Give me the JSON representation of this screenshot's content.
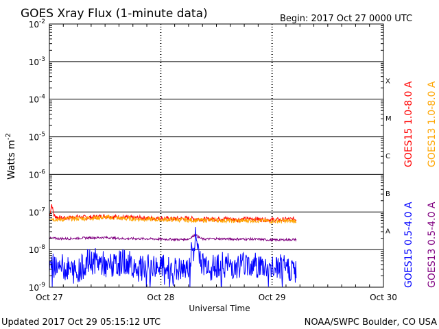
{
  "header": {
    "title": "GOES Xray Flux (1-minute data)",
    "begin": "Begin:  2017 Oct 27 0000 UTC"
  },
  "footer": {
    "updated": "Updated 2017 Oct 29 05:15:12 UTC",
    "credit": "NOAA/SWPC Boulder, CO USA"
  },
  "chart_data": {
    "type": "line",
    "title": "GOES Xray Flux (1-minute data)",
    "xlabel": "Universal Time",
    "ylabel": "Watts m",
    "ylabel_superscript": "-2",
    "y_scale": "log",
    "ylim": [
      1e-09,
      0.01
    ],
    "xlim": [
      "2017-10-27 00:00",
      "2017-10-30 00:00"
    ],
    "x_ticks": [
      "Oct 27",
      "Oct 28",
      "Oct 29",
      "Oct 30"
    ],
    "y_ticks": [
      {
        "base": "10",
        "exp": "-2",
        "value": 0.01
      },
      {
        "base": "10",
        "exp": "-3",
        "value": 0.001
      },
      {
        "base": "10",
        "exp": "-4",
        "value": 0.0001
      },
      {
        "base": "10",
        "exp": "-5",
        "value": 1e-05
      },
      {
        "base": "10",
        "exp": "-6",
        "value": 1e-06
      },
      {
        "base": "10",
        "exp": "-7",
        "value": 1e-07
      },
      {
        "base": "10",
        "exp": "-8",
        "value": 1e-08
      },
      {
        "base": "10",
        "exp": "-9",
        "value": 1e-09
      }
    ],
    "flare_classes": [
      {
        "label": "X",
        "low": 0.0001,
        "high": 0.001
      },
      {
        "label": "M",
        "low": 1e-05,
        "high": 0.0001
      },
      {
        "label": "C",
        "low": 1e-06,
        "high": 1e-05
      },
      {
        "label": "B",
        "low": 1e-07,
        "high": 1e-06
      },
      {
        "label": "A",
        "low": 1e-08,
        "high": 1e-07
      }
    ],
    "grid": true,
    "legend_placement": "right (rotated)",
    "series": [
      {
        "name": "GOES15 1.0-8.0 A",
        "color": "#ff0000",
        "x_hours": [
          0,
          0.5,
          1,
          2,
          3,
          4,
          6,
          8,
          10,
          12,
          14,
          16,
          18,
          20,
          22,
          24,
          26,
          28,
          30,
          32,
          34,
          36,
          38,
          40,
          42,
          44,
          46,
          48,
          50,
          52,
          53.25
        ],
        "y": [
          7.5e-08,
          1.6e-07,
          8e-08,
          7e-08,
          6.8e-08,
          7e-08,
          7.5e-08,
          7.2e-08,
          7.3e-08,
          7.8e-08,
          7.4e-08,
          7.2e-08,
          7e-08,
          7e-08,
          6.8e-08,
          6.8e-08,
          6.6e-08,
          6.7e-08,
          6.8e-08,
          6.5e-08,
          6.4e-08,
          6.6e-08,
          6.7e-08,
          6.3e-08,
          6.4e-08,
          6.6e-08,
          6.3e-08,
          6.2e-08,
          6.2e-08,
          6.4e-08,
          6.4e-08
        ]
      },
      {
        "name": "GOES13 1.0-8.0 A",
        "color": "#ffa500",
        "x_hours": [
          0,
          2,
          4,
          8,
          12,
          16,
          20,
          24,
          28,
          32,
          36,
          40,
          44,
          48,
          53.25
        ],
        "y": [
          6.8e-08,
          6.2e-08,
          6.6e-08,
          6.8e-08,
          7.2e-08,
          6.7e-08,
          6.5e-08,
          6.3e-08,
          6.2e-08,
          6e-08,
          6.1e-08,
          5.8e-08,
          6e-08,
          5.7e-08,
          5.8e-08
        ]
      },
      {
        "name": "GOES13 0.5-4.0 A",
        "color": "#800080",
        "x_hours": [
          0,
          4,
          8,
          12,
          16,
          20,
          24,
          28,
          30,
          31,
          31.5,
          32,
          33,
          36,
          40,
          44,
          48,
          53.25
        ],
        "y": [
          2e-08,
          1.95e-08,
          2.05e-08,
          2.1e-08,
          1.95e-08,
          1.95e-08,
          1.9e-08,
          1.85e-08,
          1.9e-08,
          2.3e-08,
          2.5e-08,
          2.2e-08,
          1.9e-08,
          1.95e-08,
          1.9e-08,
          1.9e-08,
          1.8e-08,
          1.85e-08
        ]
      },
      {
        "name": "GOES15 0.5-4.0 A",
        "color": "#0000ff",
        "x_hours": [
          0,
          2,
          4,
          6,
          8,
          10,
          12,
          14,
          16,
          18,
          20,
          22,
          24,
          26,
          28,
          29.5,
          30,
          31,
          31.5,
          32,
          33,
          34,
          36,
          38,
          40,
          42,
          44,
          46,
          48,
          50,
          52,
          53.25
        ],
        "y": [
          3.5e-09,
          4e-09,
          3e-09,
          2.5e-09,
          4.5e-09,
          5e-09,
          4e-09,
          3.5e-09,
          5e-09,
          4e-09,
          3e-09,
          3.5e-09,
          3.5e-09,
          3e-09,
          2.8e-09,
          2.5e-09,
          4e-09,
          1.2e-08,
          2.2e-08,
          1.2e-08,
          4e-09,
          4.5e-09,
          4e-09,
          4e-09,
          3.5e-09,
          4.5e-09,
          4e-09,
          3.5e-09,
          3e-09,
          3.5e-09,
          3e-09,
          3.2e-09
        ]
      }
    ]
  }
}
